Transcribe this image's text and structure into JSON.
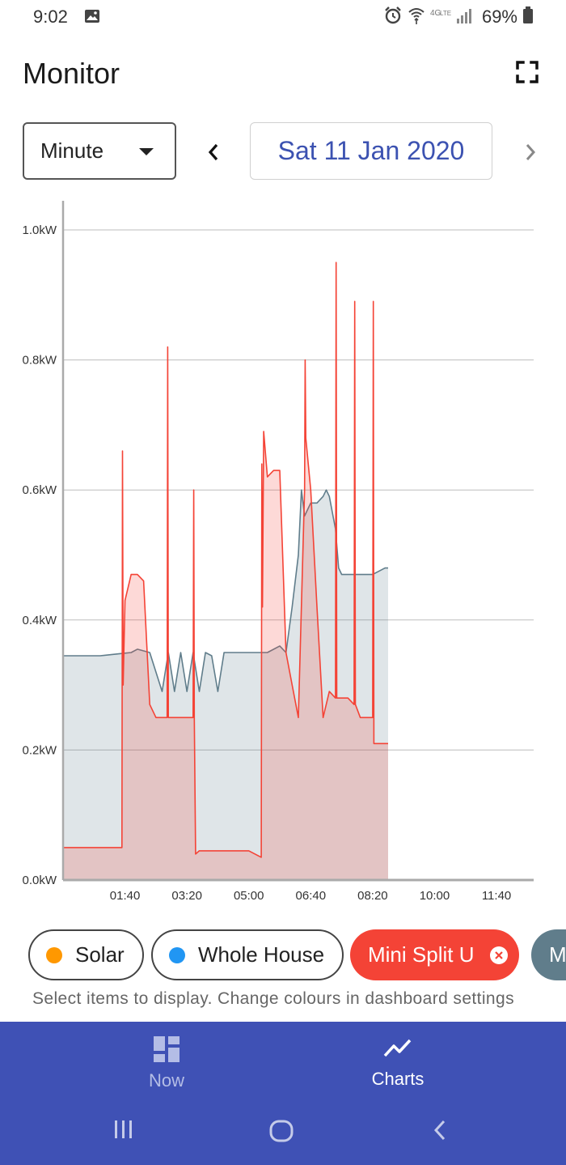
{
  "status_bar": {
    "time": "9:02",
    "battery_percent": "69%",
    "icons": [
      "image-icon",
      "alarm-icon",
      "wifi-icon",
      "lte-icon",
      "signal-icon",
      "battery-icon"
    ]
  },
  "header": {
    "title": "Monitor",
    "fullscreen_icon": "fullscreen-icon"
  },
  "controls": {
    "interval_value": "Minute",
    "date_label": "Sat 11 Jan 2020",
    "prev_icon": "chevron-left-icon",
    "next_icon": "chevron-right-icon"
  },
  "chart_data": {
    "type": "area",
    "y_ticks": [
      "0.0kW",
      "0.2kW",
      "0.4kW",
      "0.6kW",
      "0.8kW",
      "1.0kW"
    ],
    "x_ticks": [
      "01:40",
      "03:20",
      "05:00",
      "06:40",
      "08:20",
      "10:00",
      "11:40"
    ],
    "ylim": [
      0,
      1.0
    ],
    "xlim": [
      "00:00",
      "12:40"
    ],
    "grid": true,
    "series": [
      {
        "name": "Whole House",
        "color": "#607d8b",
        "x": [
          "00:00",
          "00:30",
          "01:00",
          "01:30",
          "01:50",
          "02:00",
          "02:20",
          "02:40",
          "02:50",
          "03:00",
          "03:10",
          "03:20",
          "03:30",
          "03:40",
          "03:50",
          "04:00",
          "04:10",
          "04:20",
          "04:30",
          "04:50",
          "05:10",
          "05:30",
          "05:50",
          "06:00",
          "06:10",
          "06:20",
          "06:25",
          "06:30",
          "06:40",
          "06:50",
          "07:00",
          "07:05",
          "07:10",
          "07:20",
          "07:25",
          "07:30",
          "07:40",
          "07:50",
          "08:00",
          "08:20",
          "08:40",
          "08:45"
        ],
        "values": [
          0.345,
          0.345,
          0.345,
          0.348,
          0.35,
          0.355,
          0.35,
          0.29,
          0.35,
          0.29,
          0.35,
          0.29,
          0.35,
          0.29,
          0.35,
          0.345,
          0.29,
          0.35,
          0.35,
          0.35,
          0.35,
          0.35,
          0.36,
          0.35,
          0.42,
          0.5,
          0.6,
          0.56,
          0.58,
          0.58,
          0.59,
          0.6,
          0.59,
          0.54,
          0.48,
          0.47,
          0.47,
          0.47,
          0.47,
          0.47,
          0.48,
          0.48
        ]
      },
      {
        "name": "Mini Split U",
        "color": "#f44336",
        "x": [
          "00:00",
          "01:35",
          "01:36",
          "01:37",
          "01:40",
          "01:50",
          "02:00",
          "02:10",
          "02:20",
          "02:30",
          "02:40",
          "02:48",
          "02:49",
          "02:50",
          "03:00",
          "03:20",
          "03:30",
          "03:31",
          "03:32",
          "03:34",
          "03:40",
          "04:30",
          "05:00",
          "05:20",
          "05:21",
          "05:22",
          "05:24",
          "05:30",
          "05:40",
          "05:50",
          "06:00",
          "06:10",
          "06:20",
          "06:30",
          "06:31",
          "06:32",
          "06:40",
          "06:50",
          "07:00",
          "07:10",
          "07:20",
          "07:21",
          "07:22",
          "07:30",
          "07:40",
          "07:50",
          "07:51",
          "07:52",
          "08:00",
          "08:20",
          "08:21",
          "08:22",
          "08:30",
          "08:45"
        ],
        "values": [
          0.05,
          0.05,
          0.66,
          0.3,
          0.43,
          0.47,
          0.47,
          0.46,
          0.27,
          0.25,
          0.25,
          0.25,
          0.82,
          0.25,
          0.25,
          0.25,
          0.25,
          0.6,
          0.25,
          0.04,
          0.045,
          0.045,
          0.045,
          0.035,
          0.64,
          0.42,
          0.69,
          0.62,
          0.63,
          0.63,
          0.35,
          0.3,
          0.25,
          0.6,
          0.8,
          0.68,
          0.6,
          0.42,
          0.25,
          0.29,
          0.28,
          0.95,
          0.28,
          0.28,
          0.28,
          0.27,
          0.89,
          0.27,
          0.25,
          0.25,
          0.89,
          0.21,
          0.21,
          0.21
        ]
      }
    ]
  },
  "chips": [
    {
      "label": "Solar",
      "dot_color": "#ff9800",
      "selected": false
    },
    {
      "label": "Whole House",
      "dot_color": "#2196f3",
      "selected": false
    },
    {
      "label": "Mini Split U",
      "color": "#f44336",
      "selected": true,
      "close_icon": "close-circle-icon"
    },
    {
      "label": "M",
      "color": "#607d8b",
      "selected": true
    }
  ],
  "chips_hint": "Select items to display. Change colours in dashboard settings",
  "bottom_nav": {
    "items": [
      {
        "label": "Now",
        "icon": "dashboard-icon",
        "active": false
      },
      {
        "label": "Charts",
        "icon": "trending-up-icon",
        "active": true
      }
    ]
  },
  "system_nav": [
    "recent-apps-icon",
    "home-icon",
    "back-icon"
  ]
}
